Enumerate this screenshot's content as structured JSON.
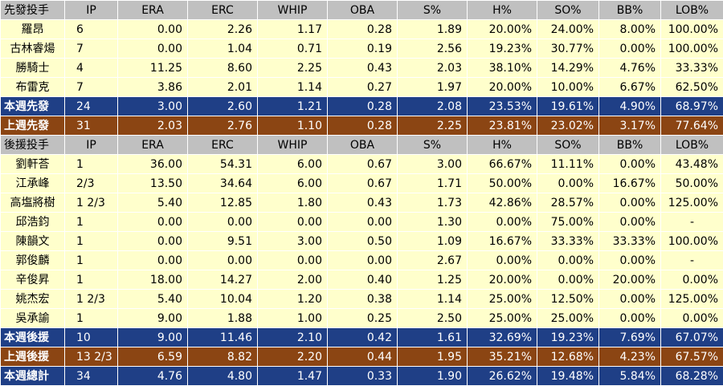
{
  "colors": {
    "header_bg": "#c0c0c0",
    "row_bg": "#ffffcc",
    "summary_blue": "#1f3f86",
    "summary_brown": "#8b4513"
  },
  "starters": {
    "header": [
      "先發投手",
      "IP",
      "ERA",
      "ERC",
      "WHIP",
      "OBA",
      "S%",
      "H%",
      "SO%",
      "BB%",
      "LOB%"
    ],
    "rows": [
      [
        "羅昂",
        "6",
        "0.00",
        "2.26",
        "1.17",
        "0.28",
        "1.89",
        "20.00%",
        "24.00%",
        "8.00%",
        "100.00%"
      ],
      [
        "古林睿煬",
        "7",
        "0.00",
        "1.04",
        "0.71",
        "0.19",
        "2.56",
        "19.23%",
        "30.77%",
        "0.00%",
        "100.00%"
      ],
      [
        "勝騎士",
        "4",
        "11.25",
        "8.60",
        "2.25",
        "0.43",
        "2.03",
        "38.10%",
        "14.29%",
        "4.76%",
        "33.33%"
      ],
      [
        "布雷克",
        "7",
        "3.86",
        "2.01",
        "1.14",
        "0.27",
        "1.97",
        "20.00%",
        "10.00%",
        "6.67%",
        "62.50%"
      ]
    ],
    "this_week": [
      "本週先發",
      "24",
      "3.00",
      "2.60",
      "1.21",
      "0.28",
      "2.08",
      "23.53%",
      "19.61%",
      "4.90%",
      "68.97%"
    ],
    "last_week": [
      "上週先發",
      "31",
      "2.03",
      "2.76",
      "1.10",
      "0.28",
      "2.25",
      "23.81%",
      "23.02%",
      "3.17%",
      "77.64%"
    ]
  },
  "relievers": {
    "header": [
      "後援投手",
      "IP",
      "ERA",
      "ERC",
      "WHIP",
      "OBA",
      "S%",
      "H%",
      "SO%",
      "BB%",
      "LOB%"
    ],
    "rows": [
      [
        "劉軒荅",
        "1",
        "36.00",
        "54.31",
        "6.00",
        "0.67",
        "3.00",
        "66.67%",
        "11.11%",
        "0.00%",
        "43.48%"
      ],
      [
        "江承峰",
        "2/3",
        "13.50",
        "34.64",
        "6.00",
        "0.67",
        "1.71",
        "50.00%",
        "0.00%",
        "16.67%",
        "50.00%"
      ],
      [
        "高塩將樹",
        "1 2/3",
        "5.40",
        "12.85",
        "1.80",
        "0.43",
        "1.73",
        "42.86%",
        "28.57%",
        "0.00%",
        "125.00%"
      ],
      [
        "邱浩鈞",
        "1",
        "0.00",
        "0.00",
        "0.00",
        "0.00",
        "1.30",
        "0.00%",
        "75.00%",
        "0.00%",
        "-"
      ],
      [
        "陳韻文",
        "1",
        "0.00",
        "9.51",
        "3.00",
        "0.50",
        "1.09",
        "16.67%",
        "33.33%",
        "33.33%",
        "100.00%"
      ],
      [
        "郭俊麟",
        "1",
        "0.00",
        "0.00",
        "0.00",
        "0.00",
        "2.67",
        "0.00%",
        "0.00%",
        "0.00%",
        "-"
      ],
      [
        "辛俊昇",
        "1",
        "18.00",
        "14.27",
        "2.00",
        "0.40",
        "1.25",
        "20.00%",
        "0.00%",
        "20.00%",
        "0.00%"
      ],
      [
        "姚杰宏",
        "1 2/3",
        "5.40",
        "10.04",
        "1.20",
        "0.38",
        "1.14",
        "25.00%",
        "12.50%",
        "0.00%",
        "125.00%"
      ],
      [
        "吳承諭",
        "1",
        "9.00",
        "1.88",
        "1.00",
        "0.25",
        "2.50",
        "25.00%",
        "25.00%",
        "0.00%",
        "0.00%"
      ]
    ],
    "this_week": [
      "本週後援",
      "10",
      "9.00",
      "11.46",
      "2.10",
      "0.42",
      "1.61",
      "32.69%",
      "19.23%",
      "7.69%",
      "67.07%"
    ],
    "last_week": [
      "上週後援",
      "13 2/3",
      "6.59",
      "8.82",
      "2.20",
      "0.44",
      "1.95",
      "35.21%",
      "12.68%",
      "4.23%",
      "67.57%"
    ]
  },
  "total": [
    "本週總計",
    "34",
    "4.76",
    "4.80",
    "1.47",
    "0.33",
    "1.90",
    "26.62%",
    "19.48%",
    "5.84%",
    "68.28%"
  ]
}
